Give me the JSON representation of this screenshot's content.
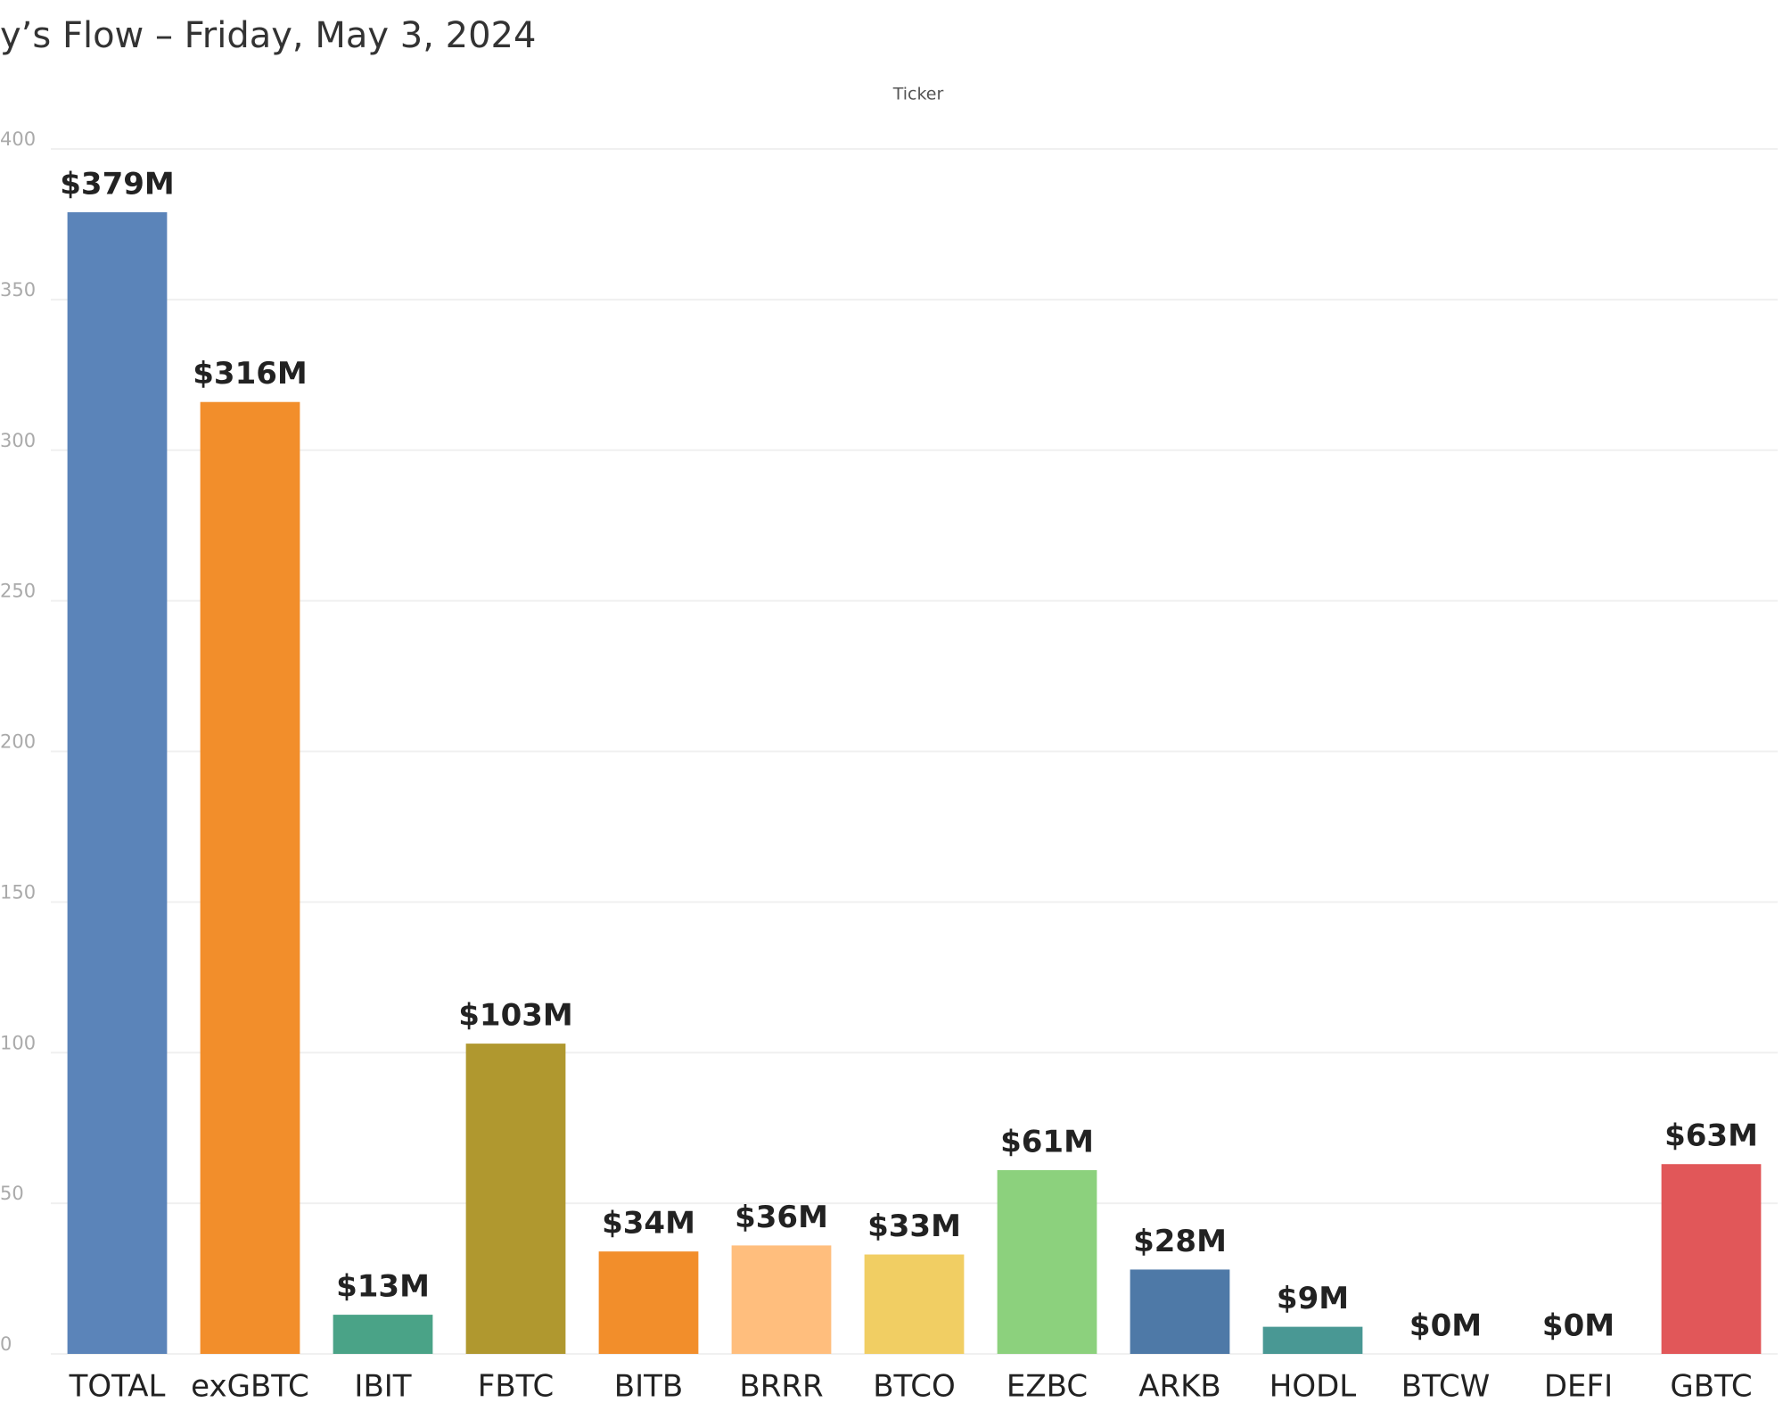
{
  "chart_data": {
    "type": "bar",
    "title": "y’s Flow – Friday, May 3, 2024",
    "x_label": "Ticker",
    "categories": [
      "TOTAL",
      "exGBTC",
      "IBIT",
      "FBTC",
      "BITB",
      "BRRR",
      "BTCO",
      "EZBC",
      "ARKB",
      "HODL",
      "BTCW",
      "DEFI",
      "GBTC"
    ],
    "values": [
      379,
      316,
      13,
      103,
      34,
      36,
      33,
      61,
      28,
      9,
      0,
      0,
      63
    ],
    "value_labels": [
      "$379M",
      "$316M",
      "$13M",
      "$103M",
      "$34M",
      "$36M",
      "$33M",
      "$61M",
      "$28M",
      "$9M",
      "$0M",
      "$0M",
      "$63M"
    ],
    "colors": [
      "#5b84b9",
      "#f28e2b",
      "#4aa387",
      "#b0982f",
      "#f28e2b",
      "#ffbe7d",
      "#f1ce63",
      "#8cd17d",
      "#4e79a7",
      "#499894",
      "#9d7660",
      "#d7b5a6",
      "#e15759"
    ],
    "ylim": [
      0,
      400
    ],
    "yticks": [
      0,
      50,
      100,
      150,
      200,
      250,
      300,
      350,
      400
    ],
    "grid": true
  }
}
